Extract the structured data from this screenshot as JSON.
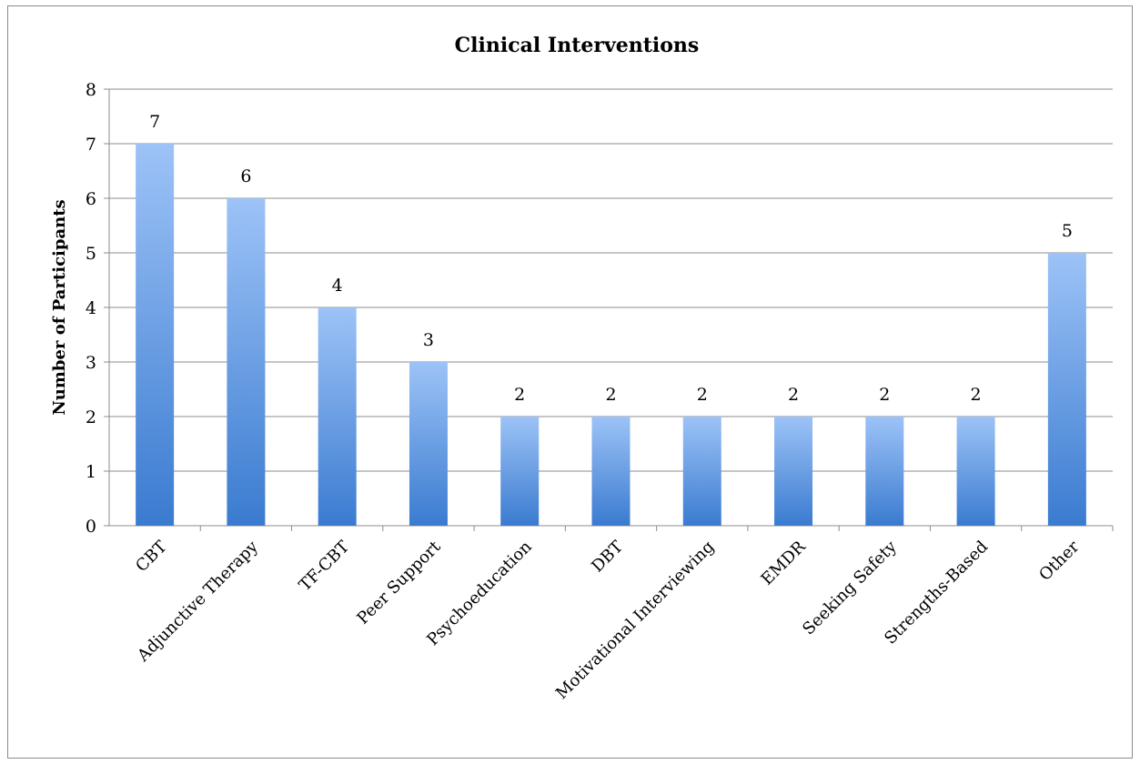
{
  "chart_data": {
    "type": "bar",
    "title": "Clinical Interventions",
    "xlabel": "",
    "ylabel": "Number of Participants",
    "categories": [
      "CBT",
      "Adjunctive Therapy",
      "TF-CBT",
      "Peer Support",
      "Psychoeducation",
      "DBT",
      "Motivational Interviewing",
      "EMDR",
      "Seeking Safety",
      "Strengths-Based",
      "Other"
    ],
    "values": [
      7,
      6,
      4,
      3,
      2,
      2,
      2,
      2,
      2,
      2,
      5
    ],
    "ylim": [
      0,
      8
    ],
    "yticks": [
      0,
      1,
      2,
      3,
      4,
      5,
      6,
      7,
      8
    ],
    "grid": true,
    "legend": "none",
    "data_labels": true,
    "colors": {
      "bar_top": "#9dc3f7",
      "bar_bottom": "#3a7bd0",
      "grid": "#8c8c8c",
      "axis": "#8c8c8c"
    }
  }
}
